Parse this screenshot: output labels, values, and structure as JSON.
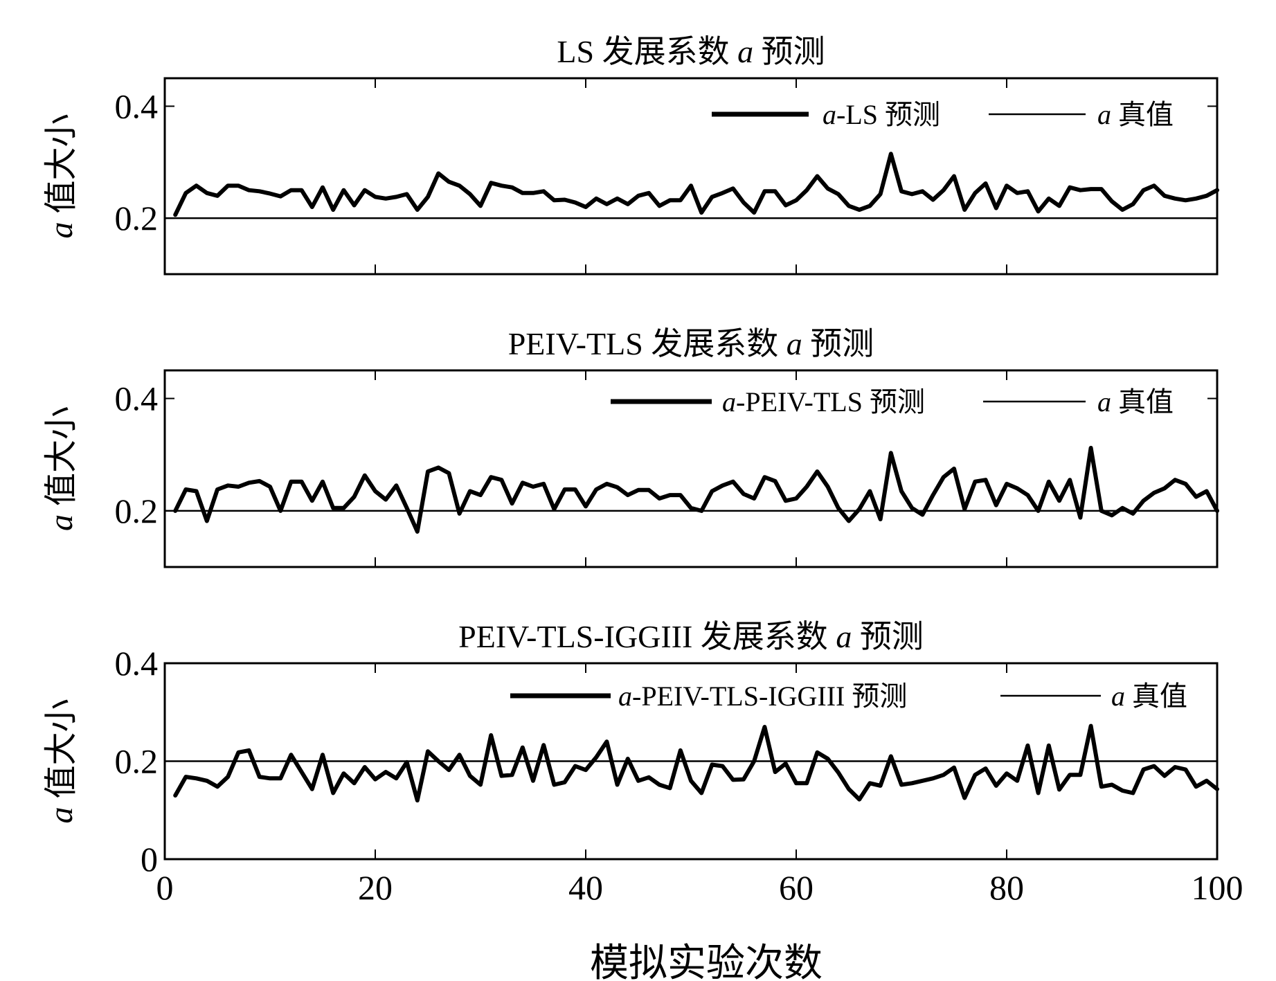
{
  "chart_data": [
    {
      "type": "line",
      "title": "LS 发展系数 a 预测",
      "title_parts": [
        "LS 发展系数 ",
        "a",
        " 预测"
      ],
      "ylabel_parts": [
        "a",
        " 值大小"
      ],
      "xlim": [
        0,
        100
      ],
      "ylim": [
        0.1,
        0.45
      ],
      "yticks": [
        0.2,
        0.4
      ],
      "yticklabels": [
        "0.2",
        "0.4"
      ],
      "xticks": [
        0,
        20,
        40,
        60,
        80,
        100
      ],
      "show_xticklabels": false,
      "legend_position": "top-right",
      "legend_entries": [
        {
          "italic": "a",
          "text": "-LS 预测"
        },
        {
          "italic": "a",
          "text": " 真值"
        }
      ],
      "series": [
        {
          "name": "a-LS 预测",
          "style": "thick",
          "x": [
            1,
            2,
            3,
            4,
            5,
            6,
            7,
            8,
            9,
            10,
            11,
            12,
            13,
            14,
            15,
            16,
            17,
            18,
            19,
            20,
            21,
            22,
            23,
            24,
            25,
            26,
            27,
            28,
            29,
            30,
            31,
            32,
            33,
            34,
            35,
            36,
            37,
            38,
            39,
            40,
            41,
            42,
            43,
            44,
            45,
            46,
            47,
            48,
            49,
            50,
            51,
            52,
            53,
            54,
            55,
            56,
            57,
            58,
            59,
            60,
            61,
            62,
            63,
            64,
            65,
            66,
            67,
            68,
            69,
            70,
            71,
            72,
            73,
            74,
            75,
            76,
            77,
            78,
            79,
            80,
            81,
            82,
            83,
            84,
            85,
            86,
            87,
            88,
            89,
            90,
            91,
            92,
            93,
            94,
            95,
            96,
            97,
            98,
            99,
            100
          ],
          "y": [
            0.206,
            0.245,
            0.258,
            0.245,
            0.24,
            0.258,
            0.258,
            0.25,
            0.248,
            0.244,
            0.239,
            0.25,
            0.25,
            0.22,
            0.255,
            0.215,
            0.25,
            0.223,
            0.25,
            0.238,
            0.235,
            0.238,
            0.243,
            0.215,
            0.238,
            0.28,
            0.265,
            0.258,
            0.243,
            0.222,
            0.263,
            0.258,
            0.255,
            0.245,
            0.245,
            0.248,
            0.232,
            0.233,
            0.228,
            0.22,
            0.235,
            0.225,
            0.235,
            0.225,
            0.24,
            0.245,
            0.222,
            0.232,
            0.232,
            0.258,
            0.21,
            0.238,
            0.245,
            0.253,
            0.228,
            0.21,
            0.248,
            0.248,
            0.223,
            0.232,
            0.25,
            0.275,
            0.253,
            0.243,
            0.222,
            0.215,
            0.222,
            0.243,
            0.315,
            0.248,
            0.243,
            0.248,
            0.233,
            0.25,
            0.275,
            0.215,
            0.245,
            0.262,
            0.218,
            0.258,
            0.245,
            0.248,
            0.212,
            0.235,
            0.222,
            0.255,
            0.25,
            0.252,
            0.252,
            0.23,
            0.215,
            0.225,
            0.25,
            0.258,
            0.24,
            0.235,
            0.232,
            0.235,
            0.24,
            0.25
          ]
        },
        {
          "name": "a 真值",
          "style": "thin",
          "x": [
            0,
            100
          ],
          "y": [
            0.2,
            0.2
          ]
        }
      ]
    },
    {
      "type": "line",
      "title": "PEIV-TLS 发展系数 a 预测",
      "title_parts": [
        "PEIV-TLS 发展系数 ",
        "a",
        " 预测"
      ],
      "ylabel_parts": [
        "a",
        " 值大小"
      ],
      "xlim": [
        0,
        100
      ],
      "ylim": [
        0.1,
        0.45
      ],
      "yticks": [
        0.2,
        0.4
      ],
      "yticklabels": [
        "0.2",
        "0.4"
      ],
      "xticks": [
        0,
        20,
        40,
        60,
        80,
        100
      ],
      "show_xticklabels": false,
      "legend_position": "top-right",
      "legend_entries": [
        {
          "italic": "a",
          "text": "-PEIV-TLS 预测"
        },
        {
          "italic": "a",
          "text": " 真值"
        }
      ],
      "series": [
        {
          "name": "a-PEIV-TLS 预测",
          "style": "thick",
          "x": [
            1,
            2,
            3,
            4,
            5,
            6,
            7,
            8,
            9,
            10,
            11,
            12,
            13,
            14,
            15,
            16,
            17,
            18,
            19,
            20,
            21,
            22,
            23,
            24,
            25,
            26,
            27,
            28,
            29,
            30,
            31,
            32,
            33,
            34,
            35,
            36,
            37,
            38,
            39,
            40,
            41,
            42,
            43,
            44,
            45,
            46,
            47,
            48,
            49,
            50,
            51,
            52,
            53,
            54,
            55,
            56,
            57,
            58,
            59,
            60,
            61,
            62,
            63,
            64,
            65,
            66,
            67,
            68,
            69,
            70,
            71,
            72,
            73,
            74,
            75,
            76,
            77,
            78,
            79,
            80,
            81,
            82,
            83,
            84,
            85,
            86,
            87,
            88,
            89,
            90,
            91,
            92,
            93,
            94,
            95,
            96,
            97,
            98,
            99,
            100
          ],
          "y": [
            0.2,
            0.238,
            0.235,
            0.182,
            0.238,
            0.245,
            0.243,
            0.25,
            0.253,
            0.243,
            0.2,
            0.252,
            0.252,
            0.218,
            0.252,
            0.205,
            0.205,
            0.225,
            0.263,
            0.235,
            0.22,
            0.245,
            0.205,
            0.163,
            0.27,
            0.277,
            0.267,
            0.195,
            0.235,
            0.228,
            0.26,
            0.255,
            0.213,
            0.25,
            0.243,
            0.248,
            0.203,
            0.238,
            0.238,
            0.208,
            0.238,
            0.248,
            0.242,
            0.228,
            0.237,
            0.237,
            0.222,
            0.228,
            0.228,
            0.205,
            0.2,
            0.235,
            0.245,
            0.252,
            0.23,
            0.222,
            0.26,
            0.253,
            0.218,
            0.222,
            0.243,
            0.27,
            0.243,
            0.205,
            0.182,
            0.203,
            0.235,
            0.185,
            0.303,
            0.235,
            0.205,
            0.193,
            0.228,
            0.26,
            0.275,
            0.203,
            0.252,
            0.255,
            0.21,
            0.248,
            0.24,
            0.228,
            0.2,
            0.252,
            0.218,
            0.255,
            0.188,
            0.312,
            0.2,
            0.192,
            0.205,
            0.195,
            0.218,
            0.232,
            0.24,
            0.255,
            0.248,
            0.225,
            0.235,
            0.2
          ]
        },
        {
          "name": "a 真值",
          "style": "thin",
          "x": [
            0,
            100
          ],
          "y": [
            0.2,
            0.2
          ]
        }
      ]
    },
    {
      "type": "line",
      "title": "PEIV-TLS-IGGIII 发展系数 a 预测",
      "title_parts": [
        "PEIV-TLS-IGGIII 发展系数 ",
        "a",
        " 预测"
      ],
      "ylabel_parts": [
        "a",
        " 值大小"
      ],
      "xlim": [
        0,
        100
      ],
      "ylim": [
        0,
        0.4
      ],
      "yticks": [
        0,
        0.2,
        0.4
      ],
      "yticklabels": [
        "0",
        "0.2",
        "0.4"
      ],
      "xticks": [
        0,
        20,
        40,
        60,
        80,
        100
      ],
      "show_xticklabels": true,
      "legend_position": "top-right",
      "legend_entries": [
        {
          "italic": "a",
          "text": "-PEIV-TLS-IGGIII 预测"
        },
        {
          "italic": "a",
          "text": " 真值"
        }
      ],
      "series": [
        {
          "name": "a-PEIV-TLS-IGGIII 预测",
          "style": "thick",
          "x": [
            1,
            2,
            3,
            4,
            5,
            6,
            7,
            8,
            9,
            10,
            11,
            12,
            13,
            14,
            15,
            16,
            17,
            18,
            19,
            20,
            21,
            22,
            23,
            24,
            25,
            26,
            27,
            28,
            29,
            30,
            31,
            32,
            33,
            34,
            35,
            36,
            37,
            38,
            39,
            40,
            41,
            42,
            43,
            44,
            45,
            46,
            47,
            48,
            49,
            50,
            51,
            52,
            53,
            54,
            55,
            56,
            57,
            58,
            59,
            60,
            61,
            62,
            63,
            64,
            65,
            66,
            67,
            68,
            69,
            70,
            71,
            72,
            73,
            74,
            75,
            76,
            77,
            78,
            79,
            80,
            81,
            82,
            83,
            84,
            85,
            86,
            87,
            88,
            89,
            90,
            91,
            92,
            93,
            94,
            95,
            96,
            97,
            98,
            99,
            100
          ],
          "y": [
            0.13,
            0.168,
            0.165,
            0.16,
            0.148,
            0.168,
            0.218,
            0.222,
            0.168,
            0.165,
            0.165,
            0.213,
            0.178,
            0.143,
            0.213,
            0.135,
            0.175,
            0.155,
            0.188,
            0.163,
            0.178,
            0.165,
            0.198,
            0.12,
            0.22,
            0.2,
            0.182,
            0.213,
            0.17,
            0.152,
            0.253,
            0.17,
            0.172,
            0.228,
            0.16,
            0.233,
            0.152,
            0.157,
            0.19,
            0.182,
            0.208,
            0.24,
            0.152,
            0.205,
            0.16,
            0.167,
            0.152,
            0.145,
            0.222,
            0.16,
            0.135,
            0.193,
            0.19,
            0.162,
            0.163,
            0.2,
            0.27,
            0.178,
            0.195,
            0.155,
            0.155,
            0.218,
            0.205,
            0.177,
            0.143,
            0.122,
            0.155,
            0.15,
            0.21,
            0.152,
            0.155,
            0.16,
            0.165,
            0.172,
            0.187,
            0.125,
            0.172,
            0.185,
            0.15,
            0.175,
            0.16,
            0.232,
            0.135,
            0.232,
            0.142,
            0.172,
            0.172,
            0.272,
            0.148,
            0.152,
            0.14,
            0.135,
            0.183,
            0.19,
            0.17,
            0.188,
            0.183,
            0.148,
            0.16,
            0.143
          ]
        },
        {
          "name": "a 真值",
          "style": "thin",
          "x": [
            0,
            100
          ],
          "y": [
            0.2,
            0.2
          ]
        }
      ]
    }
  ],
  "xlabel": "模拟实验次数"
}
